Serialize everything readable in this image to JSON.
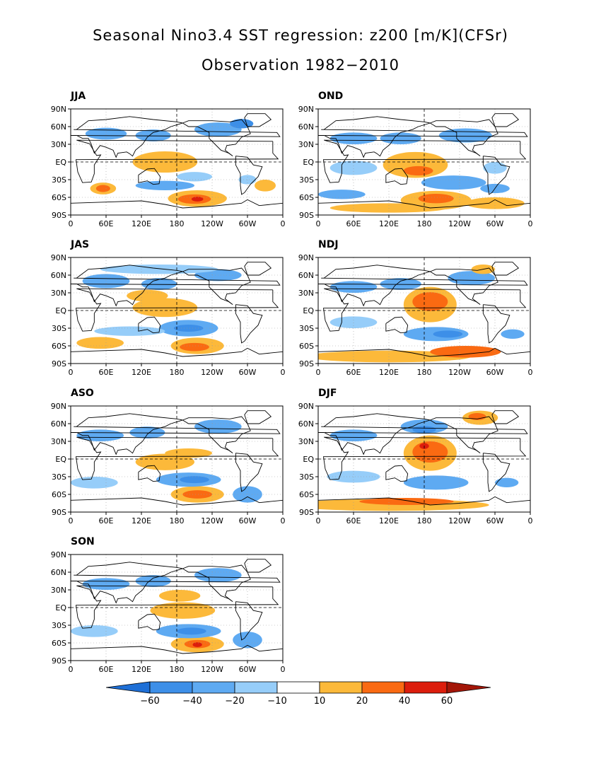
{
  "figure": {
    "title_line1": "Seasonal Nino3.4 SST regression: z200 [m/K](CFSr)",
    "title_line2": "Observation 1982−2010"
  },
  "axes": {
    "lat_ticks": [
      "90N",
      "60N",
      "30N",
      "EQ",
      "30S",
      "60S",
      "90S"
    ],
    "lon_ticks": [
      "0",
      "60E",
      "120E",
      "180",
      "120W",
      "60W",
      "0"
    ]
  },
  "panels": [
    {
      "id": "JJA",
      "label": "JJA"
    },
    {
      "id": "OND",
      "label": "OND"
    },
    {
      "id": "JAS",
      "label": "JAS"
    },
    {
      "id": "NDJ",
      "label": "NDJ"
    },
    {
      "id": "ASO",
      "label": "ASO"
    },
    {
      "id": "DJF",
      "label": "DJF"
    },
    {
      "id": "SON",
      "label": "SON"
    }
  ],
  "colorbar": {
    "labels": [
      "−60",
      "−40",
      "−20",
      "−10",
      "10",
      "20",
      "40",
      "60"
    ],
    "colors": [
      "#1e6fd6",
      "#3d8fe8",
      "#5eaaf2",
      "#96cdf9",
      "#ffffff",
      "#fcb93a",
      "#fa6a12",
      "#dc1d0c",
      "#a31608"
    ]
  }
}
